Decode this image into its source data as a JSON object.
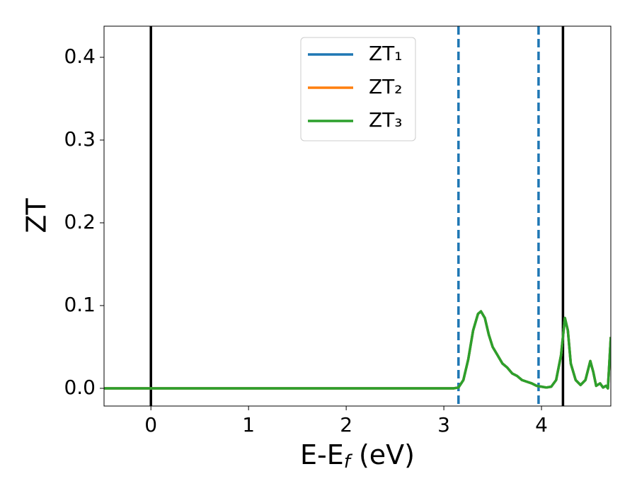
{
  "chart_data": {
    "type": "line",
    "xlabel": [
      "E-E",
      "f",
      " (eV)"
    ],
    "ylabel": "ZT",
    "x": [
      -0.48,
      3.1,
      3.15,
      3.2,
      3.25,
      3.3,
      3.35,
      3.38,
      3.42,
      3.46,
      3.5,
      3.55,
      3.6,
      3.65,
      3.7,
      3.75,
      3.8,
      3.85,
      3.9,
      3.95,
      4.0,
      4.05,
      4.1,
      4.15,
      4.2,
      4.24,
      4.27,
      4.3,
      4.35,
      4.4,
      4.45,
      4.5,
      4.53,
      4.56,
      4.6,
      4.63,
      4.66,
      4.68,
      4.71
    ],
    "series": [
      {
        "name": "ZT₁",
        "color": "#1f77b4",
        "values": [
          0,
          0,
          0.001,
          0.01,
          0.035,
          0.07,
          0.09,
          0.093,
          0.085,
          0.065,
          0.05,
          0.04,
          0.03,
          0.025,
          0.018,
          0.015,
          0.01,
          0.008,
          0.006,
          0.003,
          0.002,
          0.001,
          0.002,
          0.01,
          0.04,
          0.085,
          0.07,
          0.03,
          0.01,
          0.004,
          0.01,
          0.033,
          0.02,
          0.003,
          0.006,
          0.001,
          0.003,
          0,
          0.062
        ]
      },
      {
        "name": "ZT₂",
        "color": "#ff7f0e",
        "values": [
          0,
          0,
          0.001,
          0.01,
          0.035,
          0.07,
          0.09,
          0.093,
          0.085,
          0.065,
          0.05,
          0.04,
          0.03,
          0.025,
          0.018,
          0.015,
          0.01,
          0.008,
          0.006,
          0.003,
          0.002,
          0.001,
          0.002,
          0.01,
          0.04,
          0.085,
          0.07,
          0.03,
          0.01,
          0.004,
          0.01,
          0.033,
          0.02,
          0.003,
          0.006,
          0.001,
          0.003,
          0,
          0.062
        ]
      },
      {
        "name": "ZT₃",
        "color": "#2ca02c",
        "values": [
          0,
          0,
          0.001,
          0.01,
          0.035,
          0.07,
          0.09,
          0.093,
          0.085,
          0.065,
          0.05,
          0.04,
          0.03,
          0.025,
          0.018,
          0.015,
          0.01,
          0.008,
          0.006,
          0.003,
          0.002,
          0.001,
          0.002,
          0.01,
          0.04,
          0.085,
          0.07,
          0.03,
          0.01,
          0.004,
          0.01,
          0.033,
          0.02,
          0.003,
          0.006,
          0.001,
          0.003,
          0,
          0.062
        ]
      }
    ],
    "vlines": [
      {
        "x": 0,
        "color": "#000000",
        "style": "solid"
      },
      {
        "x": 4.22,
        "color": "#000000",
        "style": "solid"
      },
      {
        "x": 3.15,
        "color": "#1f77b4",
        "style": "dashed"
      },
      {
        "x": 3.97,
        "color": "#1f77b4",
        "style": "dashed"
      }
    ],
    "xlim": [
      -0.48,
      4.71
    ],
    "ylim": [
      -0.0214,
      0.4376
    ],
    "xticks": [
      0,
      1,
      2,
      3,
      4
    ],
    "yticks": [
      {
        "value": 0,
        "label": "0.0"
      },
      0.1,
      0.2,
      0.3,
      0.4
    ],
    "legend": "upper center"
  }
}
